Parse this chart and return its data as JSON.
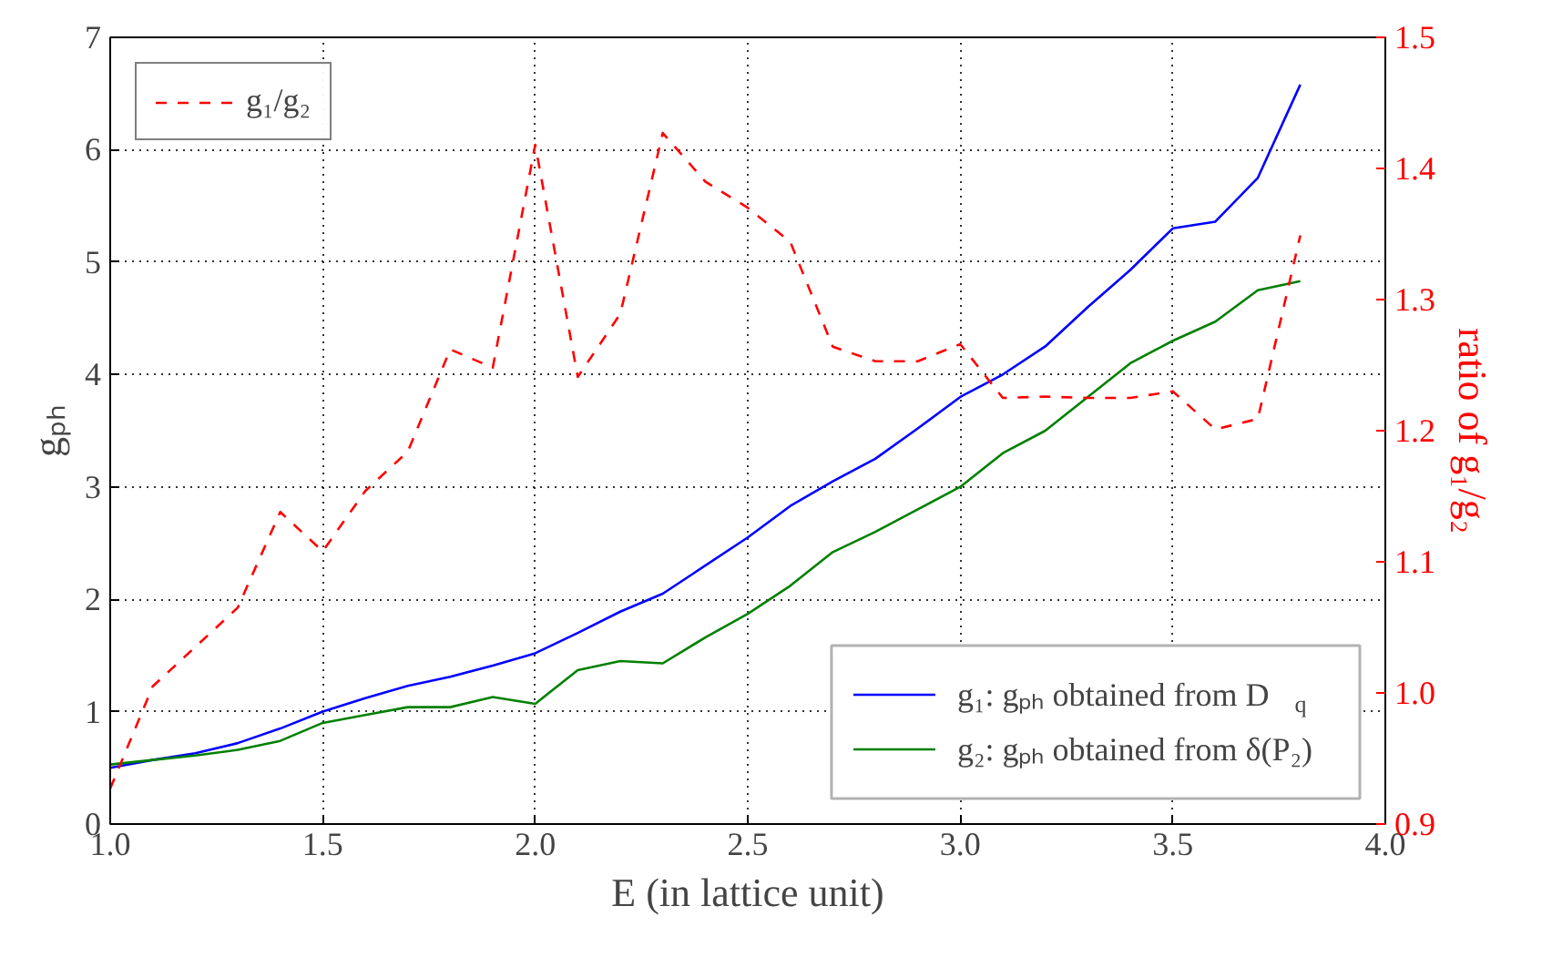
{
  "chart_data": {
    "type": "line",
    "xlabel": "E (in lattice unit)",
    "ylabel": "gₚₕ",
    "y2label": "ratio of g₁/g₂",
    "x": [
      1.0,
      1.1,
      1.2,
      1.3,
      1.4,
      1.5,
      1.6,
      1.7,
      1.8,
      1.9,
      2.0,
      2.1,
      2.2,
      2.3,
      2.4,
      2.5,
      2.6,
      2.7,
      2.8,
      2.9,
      3.0,
      3.1,
      3.2,
      3.3,
      3.4,
      3.5,
      3.6,
      3.7,
      3.8
    ],
    "series": [
      {
        "name": "g₁: gₚₕ obtained from D$_{q}$",
        "color": "#0000ff",
        "values": [
          0.5,
          0.57,
          0.63,
          0.72,
          0.85,
          1.0,
          1.12,
          1.23,
          1.31,
          1.41,
          1.52,
          1.7,
          1.89,
          2.05,
          2.3,
          2.55,
          2.83,
          3.05,
          3.25,
          3.52,
          3.8,
          4.0,
          4.25,
          4.6,
          4.93,
          5.3,
          5.36,
          5.75,
          6.58
        ]
      },
      {
        "name": "g₂: gₚₕ obtained from δ(P₂)",
        "color": "#008000",
        "values": [
          0.53,
          0.57,
          0.61,
          0.66,
          0.74,
          0.9,
          0.97,
          1.04,
          1.04,
          1.13,
          1.07,
          1.37,
          1.45,
          1.43,
          1.66,
          1.87,
          2.12,
          2.42,
          2.6,
          2.8,
          3.0,
          3.3,
          3.5,
          3.8,
          4.1,
          4.3,
          4.47,
          4.75,
          4.83
        ]
      },
      {
        "name": "g₁/g₂",
        "color": "#ff0000",
        "axis": "y2",
        "line_style": "dashed",
        "values": [
          0.927,
          1.005,
          1.035,
          1.065,
          1.138,
          1.108,
          1.154,
          1.184,
          1.262,
          1.248,
          1.418,
          1.241,
          1.289,
          1.427,
          1.39,
          1.37,
          1.344,
          1.264,
          1.253,
          1.253,
          1.266,
          1.225,
          1.226,
          1.225,
          1.225,
          1.23,
          1.201,
          1.209,
          1.349
        ]
      }
    ],
    "xlim": [
      1.0,
      4.0
    ],
    "xticks": [
      {
        "value": 1.0,
        "label": "1.0"
      },
      {
        "value": 1.5,
        "label": "1.5"
      },
      {
        "value": 2.0,
        "label": "2.0"
      },
      {
        "value": 2.5,
        "label": "2.5"
      },
      {
        "value": 3.0,
        "label": "3.0"
      },
      {
        "value": 3.5,
        "label": "3.5"
      },
      {
        "value": 4.0,
        "label": "4.0"
      }
    ],
    "ylim": [
      0,
      7
    ],
    "yticks": [
      0,
      1,
      2,
      3,
      4,
      5,
      6,
      7
    ],
    "y2lim": [
      0.9,
      1.5
    ],
    "y2ticks": [
      {
        "value": 0.9,
        "label": "0.9"
      },
      {
        "value": 1.0,
        "label": "1.0"
      },
      {
        "value": 1.1,
        "label": "1.1"
      },
      {
        "value": 1.2,
        "label": "1.2"
      },
      {
        "value": 1.3,
        "label": "1.3"
      },
      {
        "value": 1.4,
        "label": "1.4"
      },
      {
        "value": 1.5,
        "label": "1.5"
      }
    ],
    "grid": true,
    "legend": "top left"
  }
}
